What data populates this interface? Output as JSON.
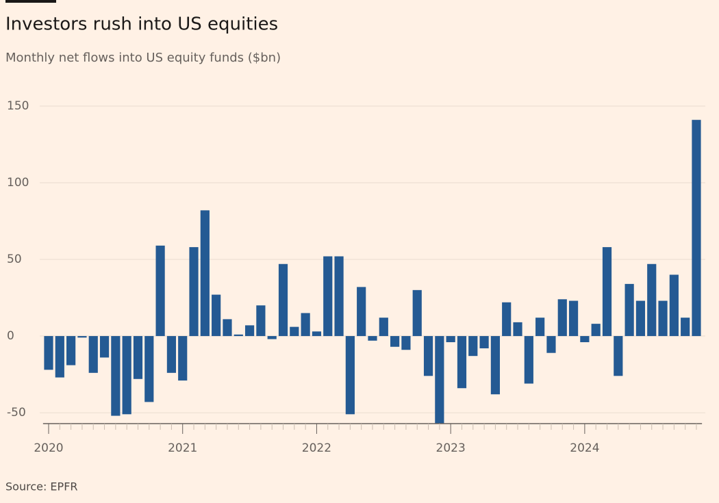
{
  "chart_data": {
    "type": "bar",
    "title": "Investors rush into US equities",
    "subtitle": "Monthly net flows into US equity funds ($bn)",
    "source": "Source: EPFR",
    "categories": [
      "2020",
      null,
      null,
      null,
      null,
      null,
      null,
      null,
      null,
      null,
      null,
      null,
      "2021",
      null,
      null,
      null,
      null,
      null,
      null,
      null,
      null,
      null,
      null,
      null,
      "2022",
      null,
      null,
      null,
      null,
      null,
      null,
      null,
      null,
      null,
      null,
      null,
      "2023",
      null,
      null,
      null,
      null,
      null,
      null,
      null,
      null,
      null,
      null,
      null,
      "2024",
      null,
      null,
      null,
      null,
      null,
      null,
      null,
      null,
      null,
      null
    ],
    "values": [
      -22,
      -27,
      -19,
      -1,
      -24,
      -14,
      -52,
      -51,
      -28,
      -43,
      59,
      -24,
      -29,
      58,
      82,
      27,
      11,
      1,
      7,
      20,
      -2,
      47,
      6,
      15,
      3,
      52,
      52,
      -51,
      32,
      -3,
      12,
      -7,
      -9,
      30,
      -26,
      -57,
      -4,
      -34,
      -13,
      -8,
      -38,
      22,
      9,
      -31,
      12,
      -11,
      24,
      23,
      -4,
      8,
      58,
      -26,
      34,
      23,
      47,
      23,
      40,
      12,
      141
    ],
    "color": "#245a93",
    "ylim": [
      -58,
      150
    ],
    "yticks": [
      -50,
      0,
      50,
      100,
      150
    ],
    "grid": true
  }
}
